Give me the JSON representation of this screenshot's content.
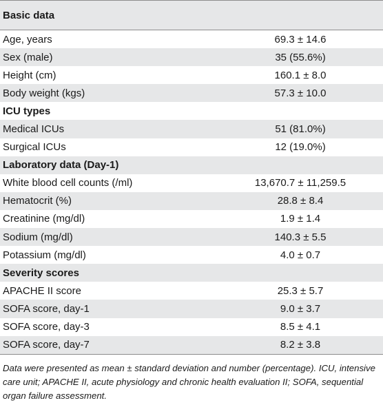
{
  "table": {
    "header": "Basic data",
    "rows": [
      {
        "label": "Age, years",
        "value": "69.3 ± 14.6",
        "shaded": false
      },
      {
        "label": "Sex (male)",
        "value": "35 (55.6%)",
        "shaded": true
      },
      {
        "label": "Height (cm)",
        "value": "160.1 ± 8.0",
        "shaded": false
      },
      {
        "label": "Body weight (kgs)",
        "value": "57.3 ± 10.0",
        "shaded": true
      },
      {
        "label": "ICU types",
        "section": true,
        "shaded": false
      },
      {
        "label": "Medical ICUs",
        "value": "51 (81.0%)",
        "shaded": true
      },
      {
        "label": "Surgical ICUs",
        "value": "12 (19.0%)",
        "shaded": false
      },
      {
        "label": "Laboratory data (Day-1)",
        "section": true,
        "shaded": true
      },
      {
        "label": "White blood cell counts (/ml)",
        "value": "13,670.7 ± 11,259.5",
        "shaded": false
      },
      {
        "label": "Hematocrit (%)",
        "value": "28.8 ± 8.4",
        "shaded": true
      },
      {
        "label": "Creatinine (mg/dl)",
        "value": "1.9 ± 1.4",
        "shaded": false
      },
      {
        "label": "Sodium (mg/dl)",
        "value": "140.3 ± 5.5",
        "shaded": true
      },
      {
        "label": "Potassium (mg/dl)",
        "value": "4.0 ± 0.7",
        "shaded": false
      },
      {
        "label": "Severity scores",
        "section": true,
        "shaded": true
      },
      {
        "label": "APACHE II score",
        "value": "25.3 ± 5.7",
        "shaded": false
      },
      {
        "label": "SOFA score, day-1",
        "value": "9.0 ± 3.7",
        "shaded": true
      },
      {
        "label": "SOFA score, day-3",
        "value": "8.5 ± 4.1",
        "shaded": false
      },
      {
        "label": "SOFA score, day-7",
        "value": "8.2 ± 3.8",
        "shaded": true
      }
    ],
    "footnote": "Data were presented as mean ± standard deviation and number (percentage). ICU, intensive care unit; APACHE II, acute physiology and chronic health evaluation II; SOFA, sequential organ failure assessment."
  },
  "colors": {
    "shade": "#e6e7e8",
    "rule": "#8c8c8c",
    "text": "#1a1a1a"
  }
}
